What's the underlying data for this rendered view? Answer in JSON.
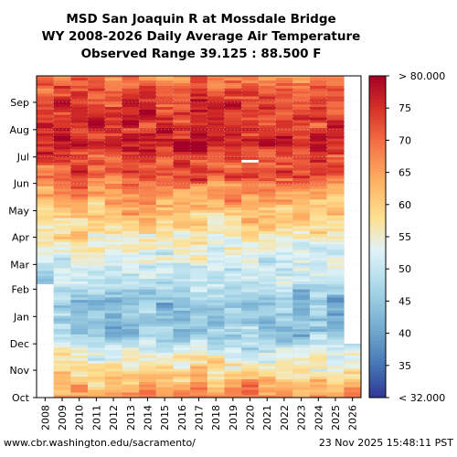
{
  "chart_data": {
    "type": "heatmap",
    "title": [
      "MSD San Joaquin R at Mossdale Bridge",
      "WY 2008-2026 Daily Average Air Temperature",
      "Observed Range 39.125 : 88.500 F"
    ],
    "x_categories": [
      "2008",
      "2009",
      "2010",
      "2011",
      "2012",
      "2013",
      "2014",
      "2015",
      "2016",
      "2017",
      "2018",
      "2019",
      "2020",
      "2021",
      "2022",
      "2023",
      "2024",
      "2025",
      "2026"
    ],
    "y_categories": [
      "Oct",
      "Nov",
      "Dec",
      "Jan",
      "Feb",
      "Mar",
      "Apr",
      "May",
      "Jun",
      "Jul",
      "Aug",
      "Sep"
    ],
    "value_unit": "F",
    "zlim": [
      32,
      80
    ],
    "colorbar_ticks": [
      "< 32.000",
      "35",
      "40",
      "45",
      "50",
      "55",
      "60",
      "65",
      "70",
      "75",
      "> 80.000"
    ],
    "monthly_mean_temperature": {
      "Oct": 63,
      "Nov": 55,
      "Dec": 46,
      "Jan": 46,
      "Feb": 51,
      "Mar": 55,
      "Apr": 60,
      "May": 66,
      "Jun": 72,
      "Jul": 76,
      "Aug": 75,
      "Sep": 72
    },
    "data_coverage": {
      "2008": [
        "Feb",
        "Sep"
      ],
      "2026": [
        "Oct",
        "Nov"
      ]
    },
    "gap": {
      "year": "2020",
      "month": "Jun"
    }
  },
  "footer": {
    "source": "www.cbr.washington.edu/sacramento/",
    "timestamp": "23 Nov 2025 15:48:11 PST"
  }
}
